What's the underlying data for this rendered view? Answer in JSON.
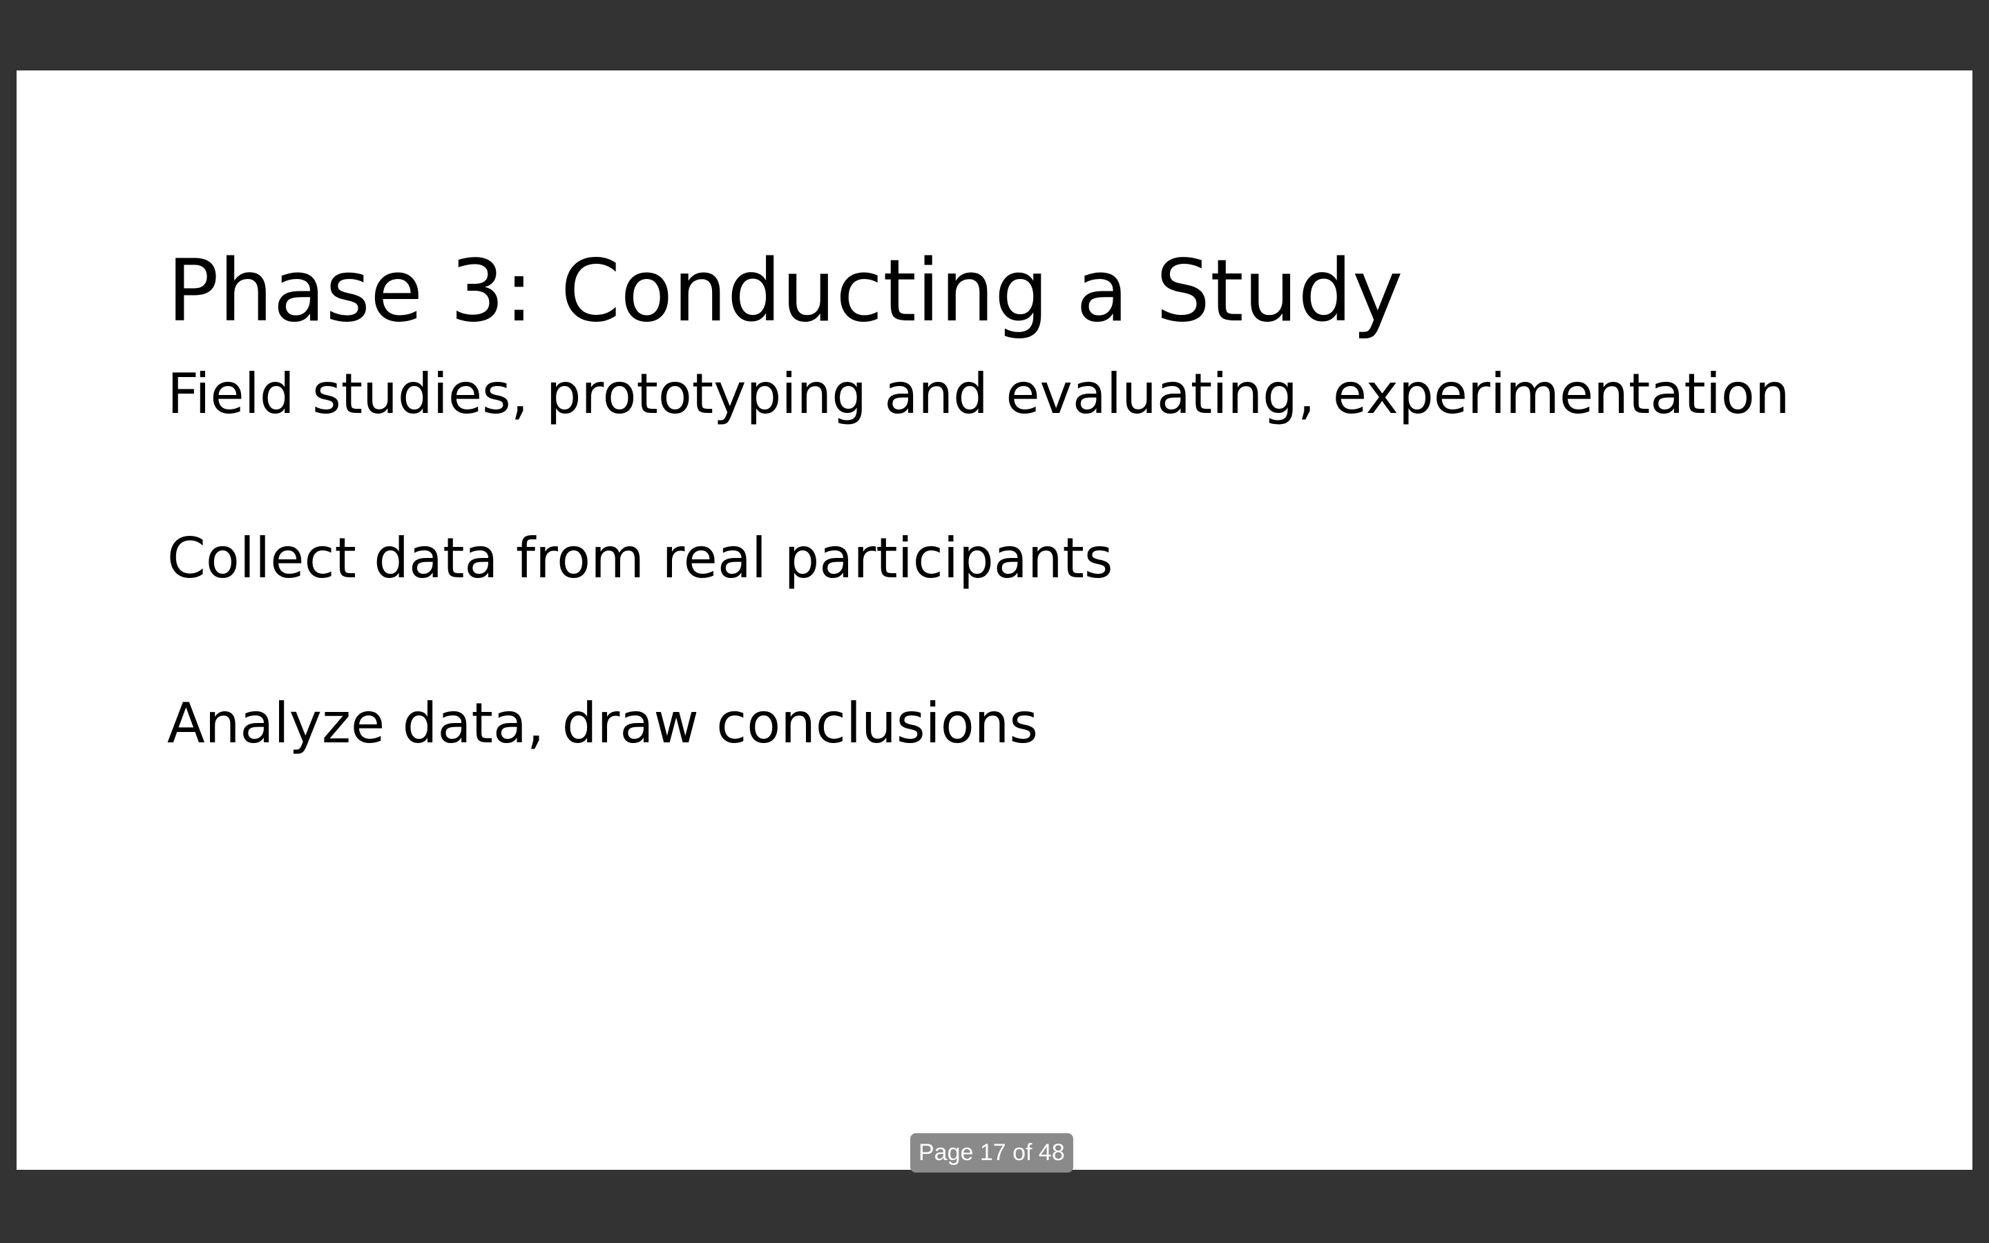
{
  "slide": {
    "title": "Phase 3: Conducting a Study",
    "bullets": [
      "Field studies, prototyping and evaluating, experimentation",
      "Collect data from real participants",
      "Analyze data, draw conclusions"
    ]
  },
  "viewer": {
    "page_indicator": "Page 17 of 48",
    "background_color": "#333333",
    "slide_background_color": "#ffffff"
  }
}
